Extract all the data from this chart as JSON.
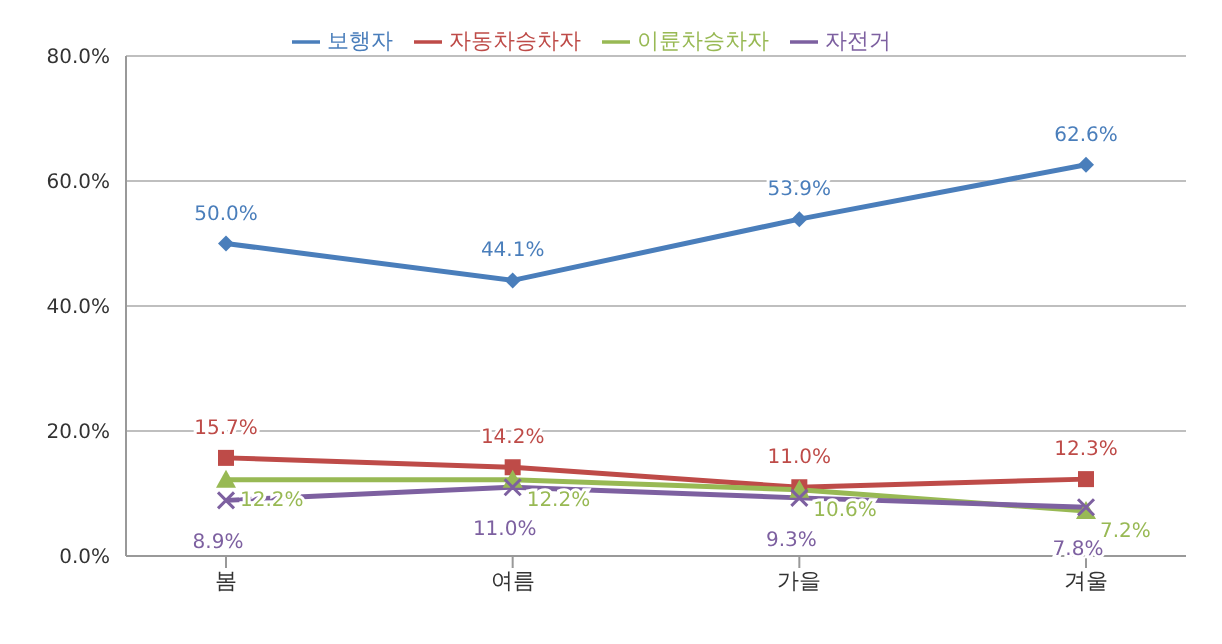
{
  "chart_data": {
    "type": "line",
    "categories": [
      "봄",
      "여름",
      "가을",
      "겨울"
    ],
    "series": [
      {
        "name": "보행자",
        "color": "#4a7ebb",
        "marker": "diamond",
        "values": [
          50.0,
          44.1,
          53.9,
          62.6
        ],
        "value_labels": [
          "50.0%",
          "44.1%",
          "53.9%",
          "62.6%"
        ]
      },
      {
        "name": "자동차승차자",
        "color": "#be4b48",
        "marker": "square",
        "values": [
          15.7,
          14.2,
          11.0,
          12.3
        ],
        "value_labels": [
          "15.7%",
          "14.2%",
          "11.0%",
          "12.3%"
        ]
      },
      {
        "name": "이륜차승차자",
        "color": "#98b954",
        "marker": "triangle",
        "values": [
          12.2,
          12.2,
          10.6,
          7.2
        ],
        "value_labels": [
          "12.2%",
          "12.2%",
          "10.6%",
          "7.2%"
        ]
      },
      {
        "name": "자전거",
        "color": "#7d60a0",
        "marker": "cross",
        "values": [
          8.9,
          11.0,
          9.3,
          7.8
        ],
        "value_labels": [
          "8.9%",
          "11.0%",
          "9.3%",
          "7.8%"
        ]
      }
    ],
    "ylim": [
      0,
      80
    ],
    "yticks": [
      {
        "value": 0,
        "label": "0.0%"
      },
      {
        "value": 20,
        "label": "20.0%"
      },
      {
        "value": 40,
        "label": "40.0%"
      },
      {
        "value": 60,
        "label": "60.0%"
      },
      {
        "value": 80,
        "label": "80.0%"
      }
    ],
    "grid": "y",
    "legend": "top",
    "line_style": "solid"
  }
}
